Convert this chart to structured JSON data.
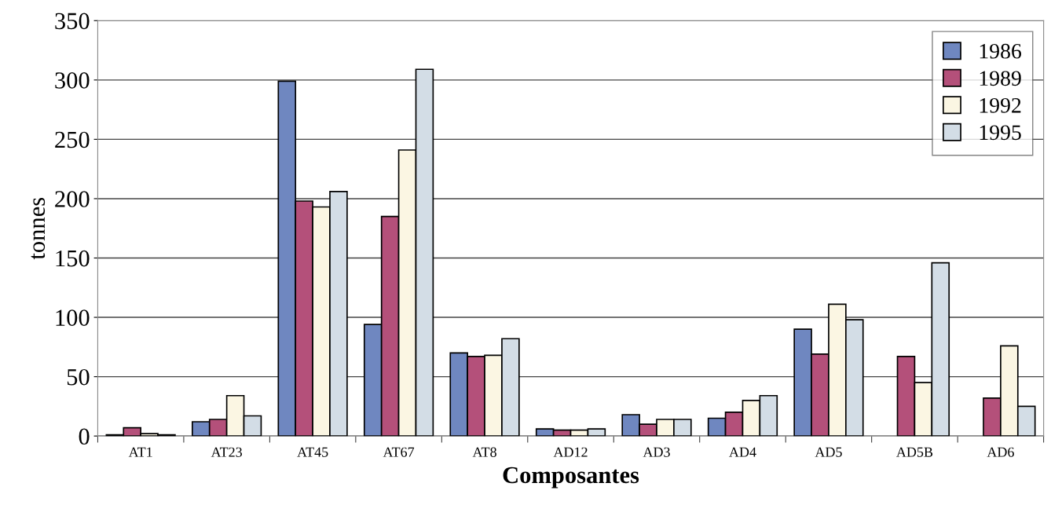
{
  "chart_data": {
    "type": "bar",
    "xlabel": "Composantes",
    "ylabel": "tonnes",
    "categories": [
      "AT1",
      "AT23",
      "AT45",
      "AT67",
      "AT8",
      "AD12",
      "AD3",
      "AD4",
      "AD5",
      "AD5B",
      "AD6"
    ],
    "series": [
      {
        "name": "1986",
        "color": "#6f87c0",
        "values": [
          1,
          12,
          299,
          94,
          70,
          6,
          18,
          15,
          90,
          null,
          null
        ]
      },
      {
        "name": "1989",
        "color": "#b4507a",
        "values": [
          7,
          14,
          198,
          185,
          67,
          5,
          10,
          20,
          69,
          67,
          32
        ]
      },
      {
        "name": "1992",
        "color": "#fbf6e3",
        "values": [
          2,
          34,
          193,
          241,
          68,
          5,
          14,
          30,
          111,
          45,
          76
        ]
      },
      {
        "name": "1995",
        "color": "#d3dde6",
        "values": [
          1,
          17,
          206,
          309,
          82,
          6,
          14,
          34,
          98,
          146,
          25
        ]
      }
    ],
    "ylim": [
      0,
      350
    ],
    "yticks": [
      0,
      50,
      100,
      150,
      200,
      250,
      300,
      350
    ],
    "grid": "y",
    "legend": "top right"
  }
}
